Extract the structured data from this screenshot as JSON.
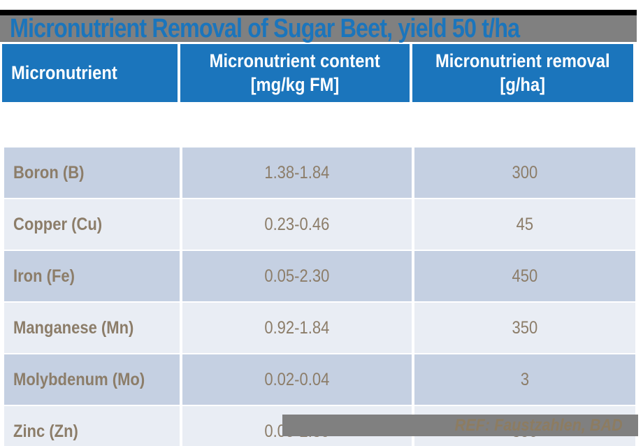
{
  "slide_title": "Micronutrient Removal of Sugar Beet, yield 50 t/ha",
  "table": {
    "columns": [
      {
        "line1": "Micronutrient",
        "line2": ""
      },
      {
        "line1": "Micronutrient content",
        "line2": "[mg/kg FM]"
      },
      {
        "line1": "Micronutrient removal",
        "line2": "[g/ha]"
      }
    ],
    "rows": [
      {
        "nutrient": "Boron (B)",
        "content": "1.38-1.84",
        "removal": "300"
      },
      {
        "nutrient": "Copper (Cu)",
        "content": "0.23-0.46",
        "removal": "45"
      },
      {
        "nutrient": "Iron (Fe)",
        "content": "0.05-2.30",
        "removal": "450"
      },
      {
        "nutrient": "Manganese (Mn)",
        "content": "0.92-1.84",
        "removal": "350"
      },
      {
        "nutrient": "Molybdenum (Mo)",
        "content": "0.02-0.04",
        "removal": "3"
      },
      {
        "nutrient": "Zinc (Zn)",
        "content": "0.05-2.30",
        "removal": "350"
      }
    ]
  },
  "footer": {
    "reference": "REF: Faustzahlen, BAD"
  },
  "colors": {
    "title_text": "#1B75BC",
    "header_bg": "#1B75BC",
    "header_text": "#FFFFFF",
    "bar_gray": "#808080",
    "row_dark": "#C5D0E2",
    "row_light": "#E9EDF4",
    "cell_text": "#8C7D69",
    "footer_text": "#8D7C61",
    "top_rule": "#000000"
  },
  "chart_data": {
    "type": "table",
    "title": "Micronutrient Removal of Sugar Beet, yield 50 t/ha",
    "columns": [
      "Micronutrient",
      "Micronutrient content [mg/kg FM]",
      "Micronutrient removal [g/ha]"
    ],
    "rows": [
      [
        "Boron (B)",
        "1.38-1.84",
        300
      ],
      [
        "Copper (Cu)",
        "0.23-0.46",
        45
      ],
      [
        "Iron (Fe)",
        "0.05-2.30",
        450
      ],
      [
        "Manganese (Mn)",
        "0.92-1.84",
        350
      ],
      [
        "Molybdenum (Mo)",
        "0.02-0.04",
        3
      ],
      [
        "Zinc (Zn)",
        "0.05-2.30",
        350
      ]
    ]
  }
}
